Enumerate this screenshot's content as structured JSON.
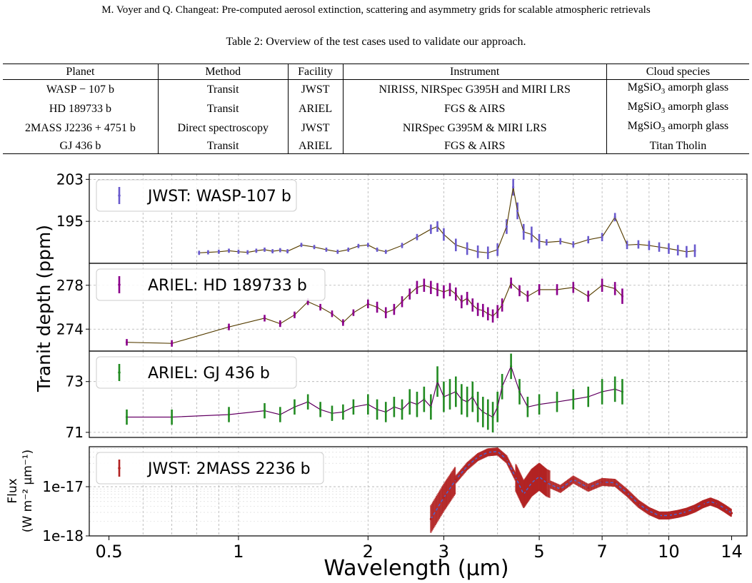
{
  "header": "M. Voyer and Q. Changeat: Pre-computed aerosol extinction, scattering and asymmetry grids for scalable atmospheric retrievals",
  "caption": "Table 2: Overview of the test cases used to validate our approach.",
  "table": {
    "columns": [
      "Planet",
      "Method",
      "Facility",
      "Instrument",
      "Cloud species"
    ],
    "rows": [
      [
        "WASP − 107 b",
        "Transit",
        "JWST",
        "NIRISS, NIRSpec G395H and MIRI LRS",
        "MgSiO3 amorph glass"
      ],
      [
        "HD 189733 b",
        "Transit",
        "ARIEL",
        "FGS & AIRS",
        "MgSiO3 amorph glass"
      ],
      [
        "2MASS J2236 + 4751 b",
        "Direct spectroscopy",
        "JWST",
        "NIRSpec G395M & MIRI LRS",
        "MgSiO3 amorph glass"
      ],
      [
        "GJ 436 b",
        "Transit",
        "ARIEL",
        "FGS & AIRS",
        "Titan Tholin"
      ]
    ]
  },
  "figure": {
    "xlabel": "Wavelength (μm)",
    "ylabel_transit": "Tranit depth (ppm)",
    "ylabel_flux_line1": "Flux",
    "ylabel_flux_line2": "(W m⁻² μm⁻¹)",
    "xticks": [
      "0.5",
      "1",
      "2",
      "3",
      "5",
      "7",
      "10",
      "14"
    ]
  },
  "chart_data": [
    {
      "type": "line",
      "legend": "JWST: WASP-107 b",
      "color": "#6a5acd",
      "model_color": "#8b6914",
      "xlim": [
        0.45,
        15.2
      ],
      "ylim": [
        187.0,
        204.0
      ],
      "yticks": [
        203,
        195
      ],
      "xscale": "log",
      "grid": true,
      "legend_position": "top-left",
      "x": [
        0.81,
        0.85,
        0.9,
        0.95,
        1.0,
        1.05,
        1.1,
        1.15,
        1.2,
        1.25,
        1.3,
        1.4,
        1.5,
        1.6,
        1.7,
        1.8,
        1.9,
        2.0,
        2.1,
        2.2,
        2.4,
        2.6,
        2.8,
        2.9,
        3.0,
        3.2,
        3.4,
        3.6,
        3.8,
        4.0,
        4.2,
        4.35,
        4.45,
        4.6,
        4.8,
        5.0,
        5.2,
        5.6,
        6.0,
        6.5,
        7.0,
        7.5,
        8.0,
        8.5,
        9.0,
        9.5,
        10.0,
        10.5,
        11.0,
        11.5
      ],
      "y": [
        189.0,
        189.1,
        189.2,
        189.4,
        189.2,
        189.1,
        189.4,
        189.6,
        189.3,
        189.5,
        189.3,
        190.5,
        190.1,
        189.6,
        189.2,
        189.6,
        190.3,
        190.5,
        189.6,
        189.2,
        190.4,
        192.0,
        193.5,
        194.0,
        192.5,
        190.5,
        189.8,
        189.2,
        189.0,
        189.6,
        194.0,
        201.5,
        197.0,
        193.0,
        192.5,
        191.2,
        191.0,
        191.2,
        190.6,
        191.5,
        192.0,
        195.8,
        190.5,
        190.6,
        190.4,
        190.1,
        189.8,
        189.5,
        189.2,
        189.4
      ],
      "yerr": [
        0.4,
        0.4,
        0.4,
        0.4,
        0.4,
        0.4,
        0.4,
        0.4,
        0.4,
        0.4,
        0.4,
        0.4,
        0.4,
        0.4,
        0.4,
        0.4,
        0.4,
        0.4,
        0.4,
        0.4,
        0.5,
        0.6,
        0.9,
        1.0,
        1.2,
        1.2,
        1.2,
        1.2,
        1.2,
        1.2,
        1.4,
        1.6,
        1.6,
        1.5,
        1.5,
        1.4,
        0.6,
        0.6,
        0.6,
        0.7,
        0.8,
        0.8,
        0.8,
        0.8,
        0.9,
        0.9,
        1.0,
        1.0,
        1.1,
        1.2
      ]
    },
    {
      "type": "line",
      "legend": "ARIEL: HD 189733 b",
      "color": "#8b008b",
      "model_color": "#8b6914",
      "xlim": [
        0.45,
        15.2
      ],
      "ylim": [
        272.0,
        280.0
      ],
      "yticks": [
        278,
        274
      ],
      "xscale": "log",
      "grid": true,
      "legend_position": "top-left",
      "x": [
        0.55,
        0.7,
        0.95,
        1.15,
        1.25,
        1.35,
        1.45,
        1.55,
        1.65,
        1.75,
        1.85,
        2.0,
        2.1,
        2.2,
        2.3,
        2.4,
        2.5,
        2.6,
        2.7,
        2.8,
        2.9,
        3.0,
        3.1,
        3.2,
        3.3,
        3.4,
        3.5,
        3.6,
        3.7,
        3.8,
        3.9,
        4.0,
        4.1,
        4.3,
        4.5,
        4.7,
        5.0,
        5.5,
        6.0,
        6.5,
        7.0,
        7.5,
        7.8
      ],
      "y": [
        272.8,
        272.7,
        274.2,
        275.0,
        274.5,
        275.3,
        276.5,
        276.0,
        275.4,
        274.6,
        275.5,
        276.3,
        276.0,
        275.5,
        275.8,
        276.5,
        277.2,
        277.8,
        278.0,
        277.8,
        277.6,
        277.4,
        277.6,
        277.2,
        276.5,
        276.8,
        276.2,
        275.8,
        275.7,
        275.4,
        275.2,
        275.6,
        276.2,
        278.2,
        277.5,
        277.0,
        277.6,
        277.6,
        277.8,
        277.0,
        278.0,
        277.7,
        277.0
      ],
      "yerr": [
        0.3,
        0.3,
        0.3,
        0.3,
        0.3,
        0.3,
        0.3,
        0.3,
        0.3,
        0.3,
        0.3,
        0.4,
        0.5,
        0.5,
        0.5,
        0.5,
        0.5,
        0.6,
        0.6,
        0.6,
        0.6,
        0.6,
        0.6,
        0.6,
        0.6,
        0.6,
        0.6,
        0.6,
        0.6,
        0.6,
        0.6,
        0.6,
        0.6,
        0.5,
        0.5,
        0.5,
        0.5,
        0.5,
        0.5,
        0.5,
        0.6,
        0.6,
        0.7
      ]
    },
    {
      "type": "line",
      "legend": "ARIEL: GJ 436 b",
      "color": "#228b22",
      "model_color": "#8b008b",
      "xlim": [
        0.45,
        15.2
      ],
      "ylim": [
        70.8,
        74.2
      ],
      "yticks": [
        73,
        71
      ],
      "xscale": "log",
      "grid": true,
      "legend_position": "top-left",
      "x": [
        0.55,
        0.7,
        0.95,
        1.15,
        1.25,
        1.35,
        1.45,
        1.55,
        1.65,
        1.75,
        1.85,
        2.0,
        2.1,
        2.2,
        2.3,
        2.4,
        2.5,
        2.6,
        2.7,
        2.8,
        2.9,
        3.0,
        3.1,
        3.2,
        3.3,
        3.4,
        3.5,
        3.6,
        3.7,
        3.8,
        3.9,
        4.0,
        4.1,
        4.3,
        4.5,
        4.7,
        5.0,
        5.5,
        6.0,
        6.5,
        7.0,
        7.5,
        7.8
      ],
      "y": [
        71.6,
        71.6,
        71.7,
        71.85,
        71.7,
        72.0,
        72.2,
        71.9,
        71.75,
        71.8,
        72.0,
        72.1,
        71.9,
        71.8,
        72.0,
        71.9,
        72.2,
        72.1,
        72.3,
        72.0,
        73.0,
        72.4,
        72.5,
        72.6,
        72.3,
        72.2,
        72.4,
        72.0,
        71.8,
        71.7,
        71.6,
        72.0,
        72.8,
        73.6,
        72.6,
        72.0,
        72.1,
        72.2,
        72.3,
        72.4,
        72.6,
        72.7,
        72.6
      ],
      "yerr": [
        0.3,
        0.3,
        0.3,
        0.3,
        0.3,
        0.3,
        0.3,
        0.3,
        0.3,
        0.3,
        0.3,
        0.4,
        0.4,
        0.4,
        0.4,
        0.4,
        0.5,
        0.5,
        0.5,
        0.5,
        0.6,
        0.6,
        0.6,
        0.6,
        0.6,
        0.6,
        0.6,
        0.6,
        0.6,
        0.6,
        0.6,
        0.6,
        0.5,
        0.5,
        0.5,
        0.4,
        0.4,
        0.4,
        0.4,
        0.4,
        0.5,
        0.5,
        0.5
      ]
    },
    {
      "type": "line",
      "legend": "JWST: 2MASS 2236 b",
      "color": "#b22222",
      "model_color": "#4169e1",
      "xlim": [
        0.45,
        15.2
      ],
      "ylim": [
        1e-18,
        6.5e-17
      ],
      "yscale": "log",
      "yticks": [
        "1e-17",
        "1e-18"
      ],
      "xscale": "log",
      "grid": true,
      "legend_position": "top-left",
      "x": [
        2.8,
        3.0,
        3.2,
        3.4,
        3.6,
        3.8,
        4.0,
        4.2,
        4.4,
        4.6,
        4.8,
        5.0,
        5.2,
        5.6,
        6.0,
        6.5,
        7.0,
        7.5,
        8.0,
        8.5,
        9.0,
        9.5,
        10.0,
        10.5,
        11.0,
        11.5,
        12.0,
        12.5,
        13.0,
        13.5,
        14.0
      ],
      "y": [
        2.2e-18,
        6e-18,
        1.4e-17,
        2.6e-17,
        4e-17,
        5e-17,
        5.2e-17,
        3.6e-17,
        1.6e-17,
        7e-18,
        1.2e-17,
        1.6e-17,
        1.2e-17,
        9e-18,
        1.4e-17,
        9.5e-18,
        1.25e-17,
        1.2e-17,
        7.5e-18,
        4.5e-18,
        3.2e-18,
        2.6e-18,
        2.6e-18,
        2.8e-18,
        3.1e-18,
        3.6e-18,
        4.4e-18,
        5e-18,
        4.4e-18,
        3.6e-18,
        2.9e-18
      ]
    }
  ]
}
